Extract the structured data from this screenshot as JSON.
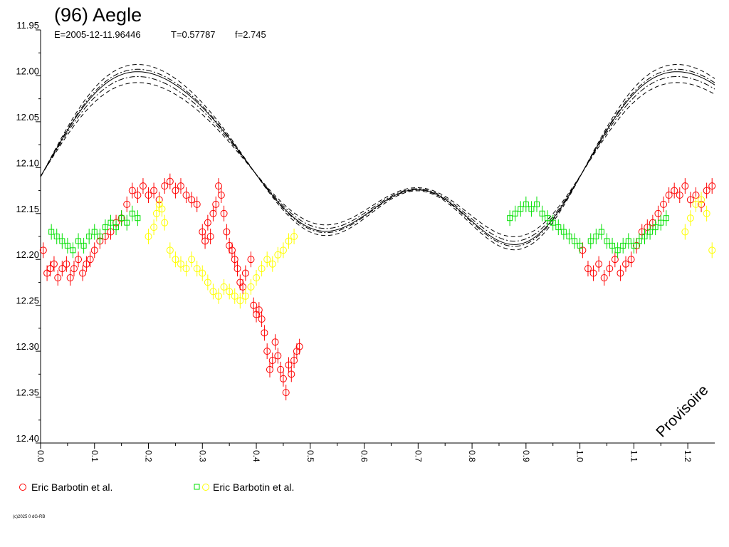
{
  "header": {
    "title": "(96) Aegle",
    "epoch": "E=2005-12-11.96446",
    "period": "T=0.57787",
    "f": "f=2.745"
  },
  "watermark": "Provisoire",
  "copyright": "(c)2025 0 dG-RB",
  "legend": [
    {
      "label": "Eric Barbotin et al.",
      "markers": [
        "circle"
      ],
      "colors": [
        "#ff0000"
      ]
    },
    {
      "label": "Eric Barbotin et al.",
      "markers": [
        "square",
        "circle"
      ],
      "colors": [
        "#00e000",
        "#ffff00"
      ]
    }
  ],
  "colors": {
    "red": "#ff0000",
    "green": "#00e000",
    "yellow": "#ffff00",
    "model": "#000000"
  },
  "chart_data": {
    "type": "scatter",
    "title": "(96) Aegle",
    "xlabel": "",
    "ylabel": "",
    "xlim": [
      0.0,
      1.25
    ],
    "ylim": [
      12.4,
      11.95
    ],
    "y_inverted": true,
    "grid": false,
    "xticks": [
      "0.0",
      "0.1",
      "0.2",
      "0.3",
      "0.4",
      "0.5",
      "0.6",
      "0.7",
      "0.8",
      "0.9",
      "1.0",
      "1.1",
      "1.2"
    ],
    "yticks": [
      "11.95",
      "12.00",
      "12.05",
      "12.10",
      "12.15",
      "12.20",
      "12.25",
      "12.30",
      "12.35",
      "12.40"
    ],
    "model_curves": [
      {
        "style": "solid",
        "offset": 0.0
      },
      {
        "style": "dashdot",
        "offset": -0.008
      },
      {
        "style": "dashdot",
        "offset": 0.004
      },
      {
        "style": "dashed",
        "offset": -0.018
      },
      {
        "style": "dashed",
        "offset": 0.012
      }
    ],
    "series": [
      {
        "name": "Eric Barbotin et al.",
        "marker": "circle",
        "color": "#ff0000",
        "points": [
          [
            0.005,
            12.19
          ],
          [
            0.012,
            12.215
          ],
          [
            0.018,
            12.21
          ],
          [
            0.025,
            12.205
          ],
          [
            0.032,
            12.22
          ],
          [
            0.04,
            12.21
          ],
          [
            0.048,
            12.205
          ],
          [
            0.055,
            12.22
          ],
          [
            0.062,
            12.21
          ],
          [
            0.07,
            12.2
          ],
          [
            0.078,
            12.215
          ],
          [
            0.085,
            12.205
          ],
          [
            0.092,
            12.2
          ],
          [
            0.1,
            12.19
          ],
          [
            0.11,
            12.18
          ],
          [
            0.12,
            12.175
          ],
          [
            0.13,
            12.17
          ],
          [
            0.14,
            12.16
          ],
          [
            0.15,
            12.155
          ],
          [
            0.16,
            12.14
          ],
          [
            0.17,
            12.125
          ],
          [
            0.18,
            12.13
          ],
          [
            0.19,
            12.12
          ],
          [
            0.2,
            12.13
          ],
          [
            0.21,
            12.125
          ],
          [
            0.22,
            12.135
          ],
          [
            0.23,
            12.12
          ],
          [
            0.24,
            12.115
          ],
          [
            0.25,
            12.125
          ],
          [
            0.26,
            12.12
          ],
          [
            0.27,
            12.13
          ],
          [
            0.28,
            12.135
          ],
          [
            0.29,
            12.14
          ],
          [
            0.3,
            12.17
          ],
          [
            0.305,
            12.18
          ],
          [
            0.31,
            12.16
          ],
          [
            0.315,
            12.175
          ],
          [
            0.32,
            12.15
          ],
          [
            0.325,
            12.14
          ],
          [
            0.33,
            12.12
          ],
          [
            0.335,
            12.13
          ],
          [
            0.34,
            12.15
          ],
          [
            0.345,
            12.17
          ],
          [
            0.35,
            12.185
          ],
          [
            0.355,
            12.19
          ],
          [
            0.36,
            12.2
          ],
          [
            0.365,
            12.21
          ],
          [
            0.37,
            12.225
          ],
          [
            0.375,
            12.23
          ],
          [
            0.38,
            12.215
          ],
          [
            0.39,
            12.2
          ],
          [
            0.395,
            12.25
          ],
          [
            0.4,
            12.26
          ],
          [
            0.405,
            12.255
          ],
          [
            0.41,
            12.265
          ],
          [
            0.415,
            12.28
          ],
          [
            0.42,
            12.3
          ],
          [
            0.425,
            12.32
          ],
          [
            0.43,
            12.31
          ],
          [
            0.435,
            12.29
          ],
          [
            0.44,
            12.305
          ],
          [
            0.445,
            12.32
          ],
          [
            0.45,
            12.33
          ],
          [
            0.455,
            12.345
          ],
          [
            0.46,
            12.315
          ],
          [
            0.465,
            12.325
          ],
          [
            0.47,
            12.31
          ],
          [
            0.475,
            12.3
          ],
          [
            0.48,
            12.295
          ],
          [
            1.005,
            12.19
          ],
          [
            1.015,
            12.21
          ],
          [
            1.025,
            12.215
          ],
          [
            1.035,
            12.205
          ],
          [
            1.045,
            12.22
          ],
          [
            1.055,
            12.21
          ],
          [
            1.065,
            12.2
          ],
          [
            1.075,
            12.215
          ],
          [
            1.085,
            12.205
          ],
          [
            1.095,
            12.2
          ],
          [
            1.105,
            12.185
          ],
          [
            1.115,
            12.17
          ],
          [
            1.125,
            12.165
          ],
          [
            1.135,
            12.16
          ],
          [
            1.145,
            12.15
          ],
          [
            1.155,
            12.14
          ],
          [
            1.165,
            12.13
          ],
          [
            1.175,
            12.125
          ],
          [
            1.185,
            12.13
          ],
          [
            1.195,
            12.12
          ],
          [
            1.205,
            12.135
          ],
          [
            1.215,
            12.13
          ],
          [
            1.225,
            12.14
          ],
          [
            1.235,
            12.125
          ],
          [
            1.245,
            12.12
          ]
        ]
      },
      {
        "name": "Eric Barbotin et al.",
        "marker": "square",
        "color": "#00e000",
        "points": [
          [
            0.02,
            12.17
          ],
          [
            0.03,
            12.175
          ],
          [
            0.04,
            12.18
          ],
          [
            0.05,
            12.185
          ],
          [
            0.06,
            12.19
          ],
          [
            0.07,
            12.18
          ],
          [
            0.08,
            12.185
          ],
          [
            0.09,
            12.175
          ],
          [
            0.1,
            12.17
          ],
          [
            0.11,
            12.175
          ],
          [
            0.12,
            12.165
          ],
          [
            0.13,
            12.16
          ],
          [
            0.14,
            12.165
          ],
          [
            0.15,
            12.155
          ],
          [
            0.16,
            12.16
          ],
          [
            0.17,
            12.15
          ],
          [
            0.18,
            12.155
          ],
          [
            0.87,
            12.155
          ],
          [
            0.88,
            12.15
          ],
          [
            0.89,
            12.145
          ],
          [
            0.9,
            12.14
          ],
          [
            0.91,
            12.145
          ],
          [
            0.92,
            12.14
          ],
          [
            0.93,
            12.15
          ],
          [
            0.94,
            12.155
          ],
          [
            0.95,
            12.16
          ],
          [
            0.96,
            12.165
          ],
          [
            0.97,
            12.17
          ],
          [
            0.98,
            12.175
          ],
          [
            0.99,
            12.18
          ],
          [
            1.0,
            12.185
          ],
          [
            1.02,
            12.18
          ],
          [
            1.03,
            12.175
          ],
          [
            1.04,
            12.17
          ],
          [
            1.05,
            12.18
          ],
          [
            1.06,
            12.185
          ],
          [
            1.07,
            12.19
          ],
          [
            1.08,
            12.185
          ],
          [
            1.09,
            12.18
          ],
          [
            1.1,
            12.185
          ],
          [
            1.11,
            12.18
          ],
          [
            1.12,
            12.175
          ],
          [
            1.13,
            12.17
          ],
          [
            1.14,
            12.165
          ],
          [
            1.15,
            12.16
          ],
          [
            1.16,
            12.155
          ]
        ]
      },
      {
        "name": "Eric Barbotin et al.",
        "marker": "circle",
        "color": "#ffff00",
        "points": [
          [
            0.2,
            12.175
          ],
          [
            0.21,
            12.165
          ],
          [
            0.215,
            12.15
          ],
          [
            0.22,
            12.14
          ],
          [
            0.225,
            12.145
          ],
          [
            0.23,
            12.16
          ],
          [
            0.24,
            12.19
          ],
          [
            0.25,
            12.2
          ],
          [
            0.26,
            12.205
          ],
          [
            0.27,
            12.21
          ],
          [
            0.28,
            12.2
          ],
          [
            0.29,
            12.21
          ],
          [
            0.3,
            12.215
          ],
          [
            0.31,
            12.225
          ],
          [
            0.32,
            12.235
          ],
          [
            0.33,
            12.24
          ],
          [
            0.34,
            12.23
          ],
          [
            0.35,
            12.235
          ],
          [
            0.36,
            12.24
          ],
          [
            0.37,
            12.245
          ],
          [
            0.38,
            12.24
          ],
          [
            0.39,
            12.23
          ],
          [
            0.4,
            12.22
          ],
          [
            0.41,
            12.21
          ],
          [
            0.42,
            12.2
          ],
          [
            0.43,
            12.205
          ],
          [
            0.44,
            12.195
          ],
          [
            0.45,
            12.19
          ],
          [
            0.46,
            12.18
          ],
          [
            0.47,
            12.175
          ],
          [
            1.195,
            12.17
          ],
          [
            1.205,
            12.155
          ],
          [
            1.215,
            12.14
          ],
          [
            1.225,
            12.135
          ],
          [
            1.235,
            12.15
          ],
          [
            1.245,
            12.19
          ]
        ]
      }
    ]
  }
}
